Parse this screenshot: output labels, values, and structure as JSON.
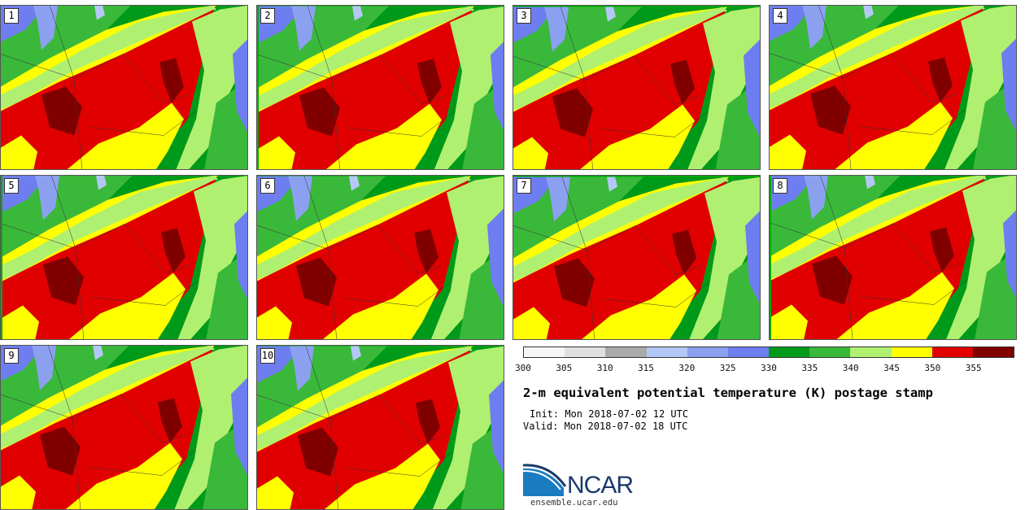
{
  "panels": [
    {
      "label": "1"
    },
    {
      "label": "2"
    },
    {
      "label": "3"
    },
    {
      "label": "4"
    },
    {
      "label": "5"
    },
    {
      "label": "6"
    },
    {
      "label": "7"
    },
    {
      "label": "8"
    },
    {
      "label": "9"
    },
    {
      "label": "10"
    }
  ],
  "colorbar": {
    "colors": [
      "#f5f5f5",
      "#e0e0e0",
      "#aaaaaa",
      "#b4c8f8",
      "#8ca0f0",
      "#6e7ef0",
      "#009a1a",
      "#3ab83a",
      "#b0f070",
      "#ffff00",
      "#e00000",
      "#800000"
    ],
    "tick_labels": [
      "300",
      "305",
      "310",
      "315",
      "320",
      "325",
      "330",
      "335",
      "340",
      "345",
      "350",
      "355"
    ]
  },
  "title": "2-m equivalent potential temperature (K) postage stamp",
  "init": "Init: Mon 2018-07-02 12 UTC",
  "valid": "Valid: Mon 2018-07-02 18 UTC",
  "logo_text": "NCAR",
  "site": "ensemble.ucar.edu"
}
